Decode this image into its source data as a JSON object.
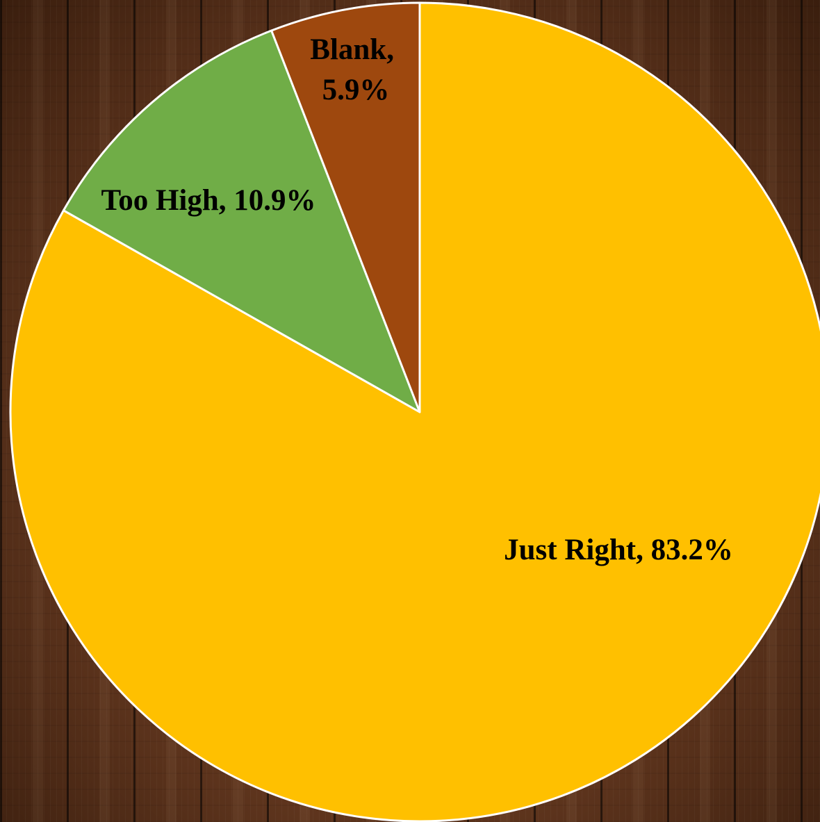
{
  "chart_data": {
    "type": "pie",
    "slices": [
      {
        "label": "Just Right",
        "value": 83.2,
        "display": "Just Right, 83.2%",
        "color": "#FFC000"
      },
      {
        "label": "Too High",
        "value": 10.9,
        "display": "Too High, 10.9%",
        "color": "#70AD47"
      },
      {
        "label": "Blank",
        "value": 5.9,
        "display_lines": [
          "Blank,",
          "5.9%"
        ],
        "color": "#9E480E"
      }
    ],
    "slice_border_color": "#FFFFFF",
    "start_angle": "12 o'clock",
    "direction": "clockwise",
    "legend": "none"
  }
}
